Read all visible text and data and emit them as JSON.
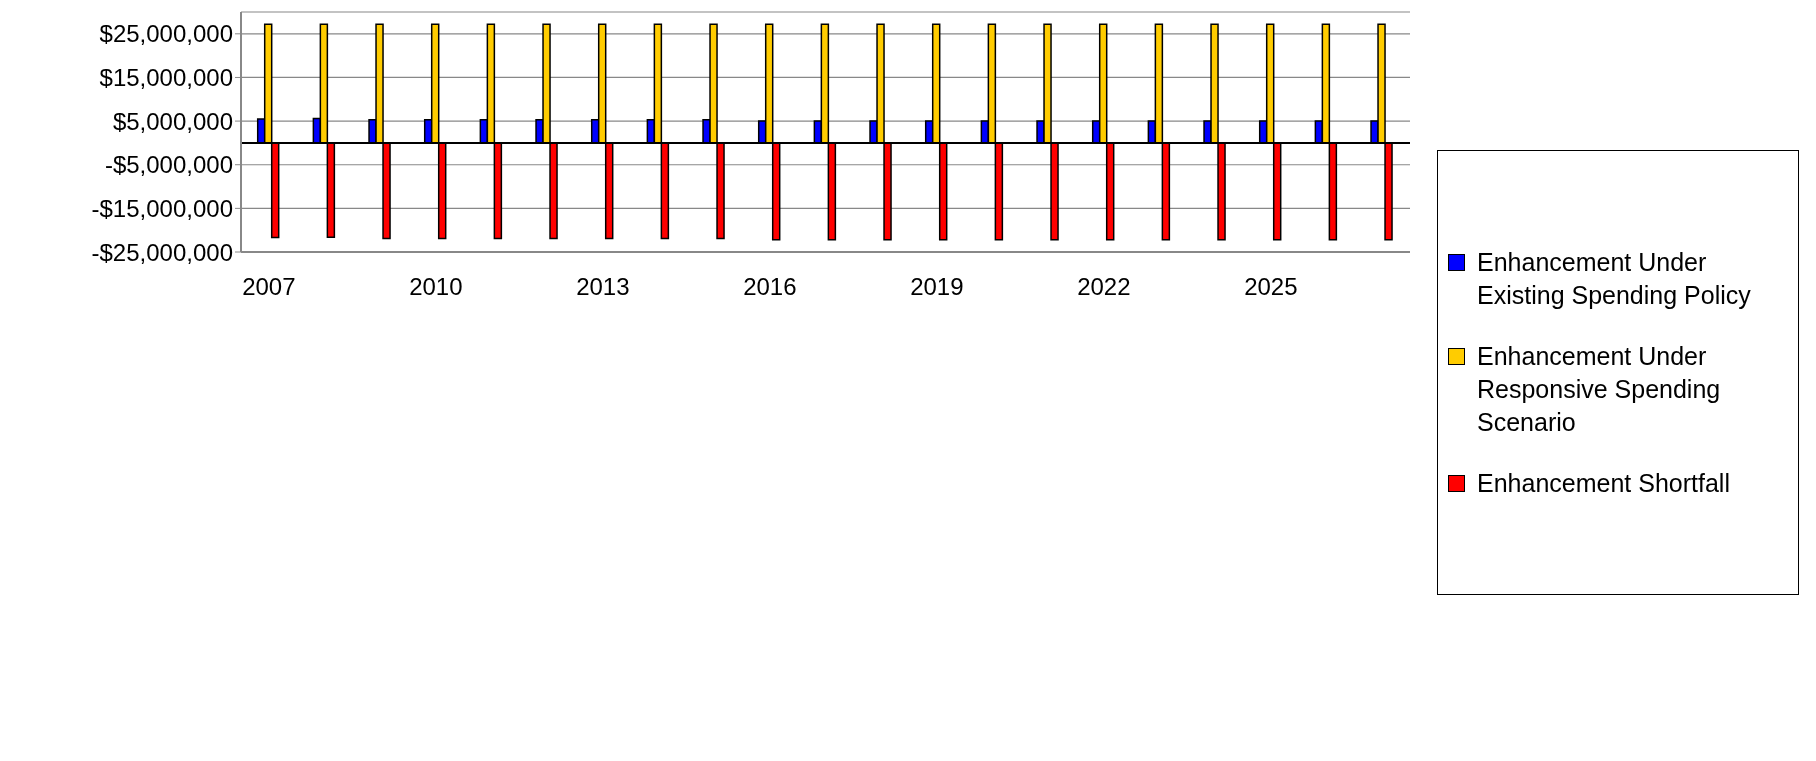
{
  "chart_data": {
    "type": "bar",
    "categories": [
      "2007",
      null,
      null,
      "2010",
      null,
      null,
      "2013",
      null,
      null,
      "2016",
      null,
      null,
      "2019",
      null,
      null,
      "2022",
      null,
      null,
      "2025",
      null,
      null
    ],
    "series": [
      {
        "name": "Enhancement Under Existing Spending Policy",
        "color": "#0000ff",
        "values": [
          5500000,
          5600000,
          5300000,
          5300000,
          5300000,
          5300000,
          5300000,
          5300000,
          5300000,
          5000000,
          5000000,
          5000000,
          5000000,
          5000000,
          5000000,
          5000000,
          5000000,
          5000000,
          5000000,
          5000000,
          5000000
        ]
      },
      {
        "name": "Enhancement Under Responsive Spending Scenario",
        "color": "#ffcc00",
        "values": [
          27200000,
          27200000,
          27200000,
          27200000,
          27200000,
          27200000,
          27200000,
          27200000,
          27200000,
          27200000,
          27200000,
          27200000,
          27200000,
          27200000,
          27200000,
          27200000,
          27200000,
          27200000,
          27200000,
          27200000,
          27200000
        ]
      },
      {
        "name": "Enhancement Shortfall",
        "color": "#ff0000",
        "values": [
          -21700000,
          -21600000,
          -21900000,
          -21900000,
          -21900000,
          -21900000,
          -21900000,
          -21900000,
          -21900000,
          -22200000,
          -22200000,
          -22200000,
          -22200000,
          -22200000,
          -22200000,
          -22200000,
          -22200000,
          -22200000,
          -22200000,
          -22200000,
          -22200000
        ]
      }
    ],
    "ylim": [
      -25000000,
      30000000
    ],
    "yticks": [
      {
        "value": -25000000,
        "label": "-$25,000,000"
      },
      {
        "value": -15000000,
        "label": "-$15,000,000"
      },
      {
        "value": -5000000,
        "label": "-$5,000,000"
      },
      {
        "value": 5000000,
        "label": "$5,000,000"
      },
      {
        "value": 15000000,
        "label": "$15,000,000"
      },
      {
        "value": 25000000,
        "label": "$25,000,000"
      }
    ],
    "grid": "y",
    "legend": "right"
  }
}
